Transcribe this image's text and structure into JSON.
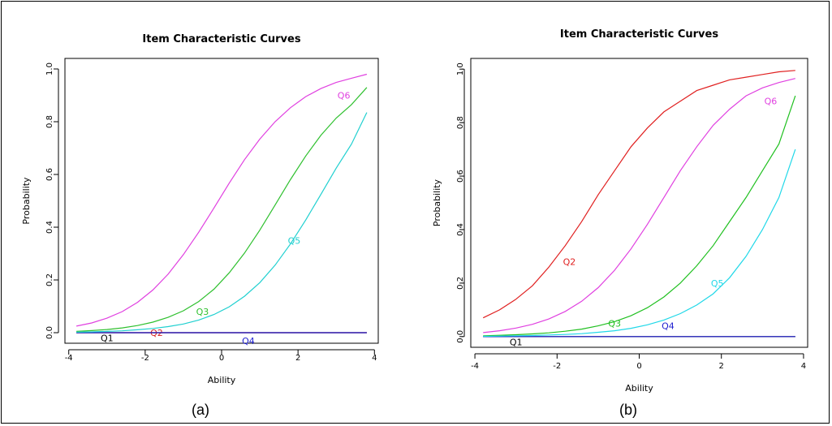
{
  "captions": {
    "a": "(a)",
    "b": "(b)"
  },
  "chart_data": [
    {
      "type": "line",
      "title": "Item Characteristic Curves",
      "xlabel": "Ability",
      "ylabel": "Probability",
      "xlim": [
        -3.8,
        3.8
      ],
      "ylim": [
        0,
        1
      ],
      "xticks": [
        "-4",
        "-2",
        "0",
        "2",
        "4"
      ],
      "yticks": [
        "0.0",
        "0.2",
        "0.4",
        "0.6",
        "0.8",
        "1.0"
      ],
      "x": [
        -3.8,
        -3.4,
        -3.0,
        -2.6,
        -2.2,
        -1.8,
        -1.4,
        -1.0,
        -0.6,
        -0.2,
        0.2,
        0.6,
        1.0,
        1.4,
        1.8,
        2.2,
        2.6,
        3.0,
        3.4,
        3.8
      ],
      "series": [
        {
          "name": "Q1",
          "color": "#000000",
          "label_xy": [
            -3.0,
            -0.02
          ],
          "values": [
            0,
            0,
            0,
            0,
            0,
            0,
            0,
            0,
            0,
            0,
            0,
            0,
            0,
            0,
            0,
            0,
            0,
            0,
            0,
            0
          ]
        },
        {
          "name": "Q2",
          "color": "#d62020",
          "label_xy": [
            -1.7,
            0.0
          ],
          "values": [
            0,
            0,
            0,
            0,
            0,
            0,
            0,
            0,
            0,
            0,
            0,
            0,
            0,
            0,
            0,
            0,
            0,
            0,
            0,
            0
          ]
        },
        {
          "name": "Q3",
          "color": "#2ec02e",
          "label_xy": [
            -0.5,
            0.08
          ],
          "values": [
            0.005,
            0.008,
            0.012,
            0.018,
            0.027,
            0.04,
            0.058,
            0.083,
            0.118,
            0.165,
            0.227,
            0.302,
            0.389,
            0.484,
            0.58,
            0.67,
            0.749,
            0.814,
            0.865,
            0.93
          ]
        },
        {
          "name": "Q4",
          "color": "#2020d0",
          "label_xy": [
            0.7,
            -0.03
          ],
          "values": [
            0,
            0,
            0,
            0,
            0,
            0,
            0,
            0,
            0,
            0,
            0,
            0,
            0,
            0,
            0,
            0,
            0,
            0,
            0,
            0
          ]
        },
        {
          "name": "Q5",
          "color": "#20d0d0",
          "label_xy": [
            1.9,
            0.35
          ],
          "values": [
            0.002,
            0.003,
            0.005,
            0.007,
            0.011,
            0.016,
            0.023,
            0.033,
            0.048,
            0.069,
            0.098,
            0.138,
            0.19,
            0.256,
            0.336,
            0.427,
            0.525,
            0.624,
            0.715,
            0.835
          ]
        },
        {
          "name": "Q6",
          "color": "#e040e0",
          "label_xy": [
            3.2,
            0.9
          ],
          "values": [
            0.025,
            0.037,
            0.055,
            0.08,
            0.115,
            0.162,
            0.222,
            0.296,
            0.381,
            0.473,
            0.567,
            0.656,
            0.734,
            0.8,
            0.853,
            0.895,
            0.926,
            0.949,
            0.965,
            0.98
          ]
        }
      ],
      "grid": false
    },
    {
      "type": "line",
      "title": "Item Characteristic Curves",
      "xlabel": "Ability",
      "ylabel": "Probability",
      "xlim": [
        -3.8,
        3.8
      ],
      "ylim": [
        0,
        1
      ],
      "xticks": [
        "-4",
        "-2",
        "0",
        "2",
        "4"
      ],
      "yticks": [
        "0.0",
        "0.2",
        "0.4",
        "0.6",
        "0.8",
        "1.0"
      ],
      "x": [
        -3.8,
        -3.4,
        -3.0,
        -2.6,
        -2.2,
        -1.8,
        -1.4,
        -1.0,
        -0.6,
        -0.2,
        0.2,
        0.6,
        1.0,
        1.4,
        1.8,
        2.2,
        2.6,
        3.0,
        3.4,
        3.8
      ],
      "series": [
        {
          "name": "Q1",
          "color": "#000000",
          "label_xy": [
            -3.0,
            -0.02
          ],
          "values": [
            0,
            0,
            0,
            0,
            0,
            0,
            0,
            0,
            0,
            0,
            0,
            0,
            0,
            0,
            0,
            0,
            0,
            0,
            0,
            0
          ]
        },
        {
          "name": "Q2",
          "color": "#e02020",
          "label_xy": [
            -1.7,
            0.28
          ],
          "values": [
            0.07,
            0.1,
            0.14,
            0.19,
            0.26,
            0.34,
            0.43,
            0.53,
            0.62,
            0.71,
            0.78,
            0.84,
            0.88,
            0.92,
            0.94,
            0.96,
            0.97,
            0.98,
            0.99,
            0.995
          ]
        },
        {
          "name": "Q3",
          "color": "#20c020",
          "label_xy": [
            -0.6,
            0.05
          ],
          "values": [
            0.003,
            0.005,
            0.007,
            0.01,
            0.014,
            0.02,
            0.028,
            0.04,
            0.056,
            0.078,
            0.108,
            0.148,
            0.2,
            0.265,
            0.34,
            0.43,
            0.52,
            0.62,
            0.72,
            0.9
          ]
        },
        {
          "name": "Q4",
          "color": "#2020d0",
          "label_xy": [
            0.7,
            0.04
          ],
          "values": [
            0,
            0,
            0,
            0,
            0,
            0,
            0,
            0,
            0,
            0,
            0,
            0,
            0,
            0,
            0,
            0,
            0,
            0,
            0,
            0
          ]
        },
        {
          "name": "Q5",
          "color": "#20d8e8",
          "label_xy": [
            1.9,
            0.2
          ],
          "values": [
            0.001,
            0.002,
            0.003,
            0.004,
            0.006,
            0.008,
            0.011,
            0.016,
            0.022,
            0.031,
            0.044,
            0.062,
            0.086,
            0.118,
            0.16,
            0.22,
            0.3,
            0.4,
            0.52,
            0.7
          ]
        },
        {
          "name": "Q6",
          "color": "#e040e0",
          "label_xy": [
            3.2,
            0.88
          ],
          "values": [
            0.015,
            0.022,
            0.032,
            0.046,
            0.066,
            0.094,
            0.132,
            0.183,
            0.248,
            0.328,
            0.42,
            0.52,
            0.62,
            0.71,
            0.79,
            0.85,
            0.9,
            0.93,
            0.95,
            0.965
          ]
        }
      ],
      "grid": false
    }
  ]
}
